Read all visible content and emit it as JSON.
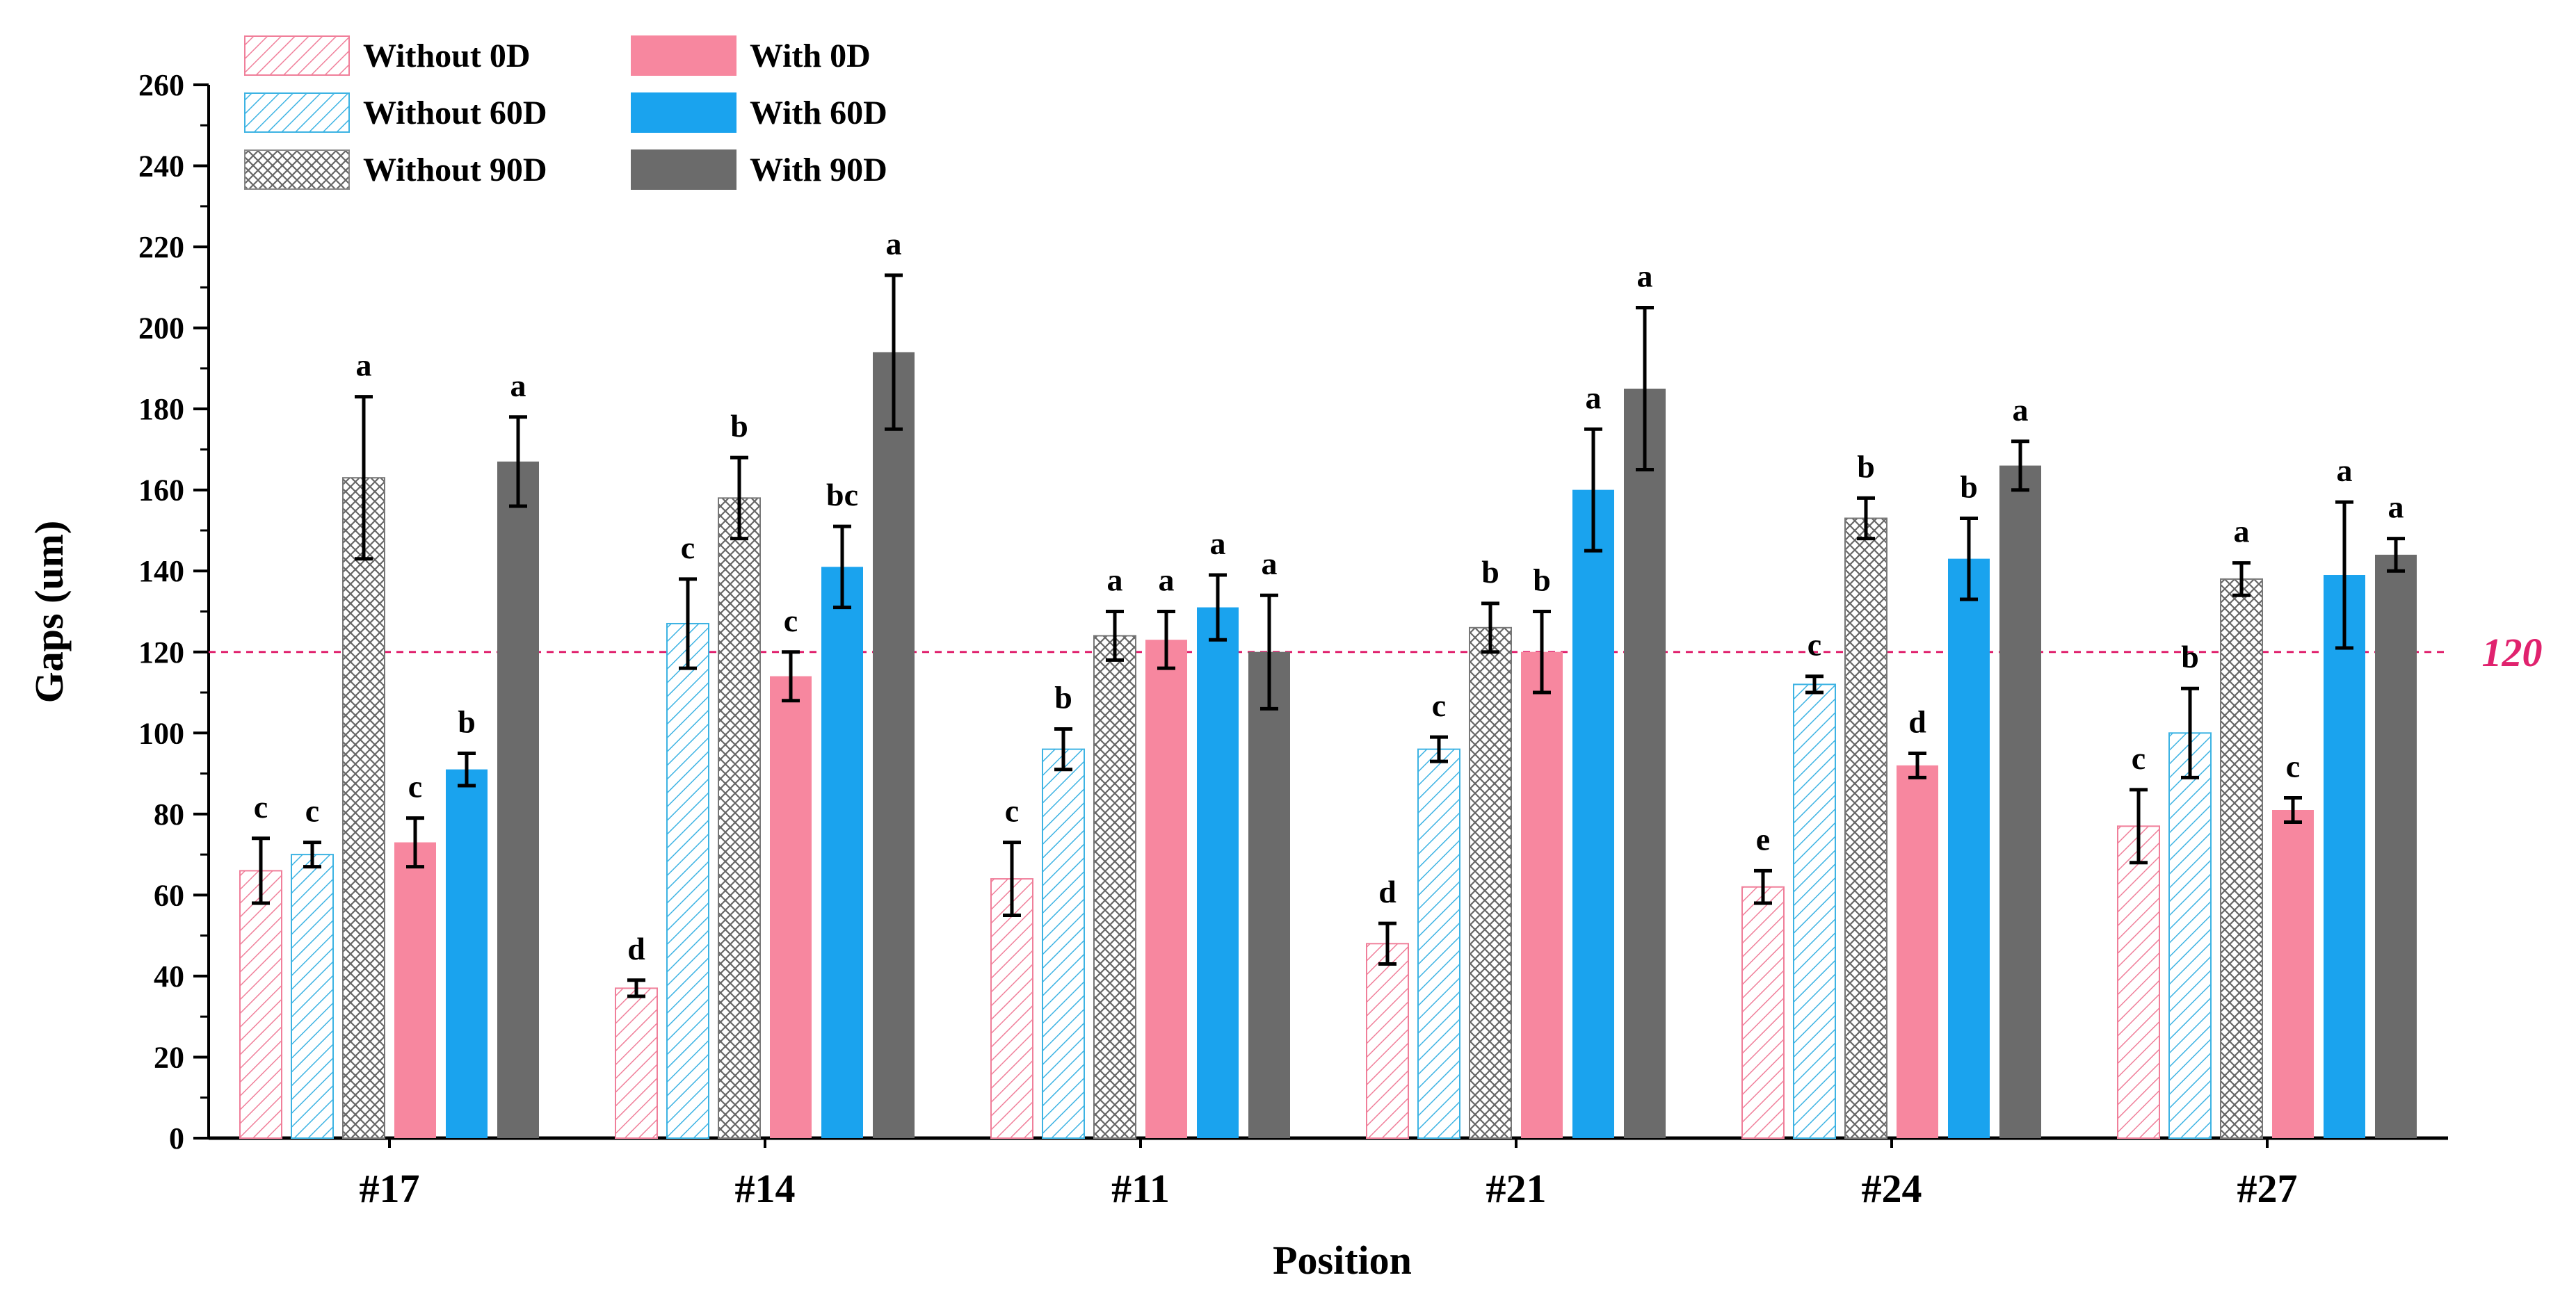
{
  "chart_data": {
    "type": "bar",
    "xlabel": "Position",
    "ylabel": "Gaps (um)",
    "ylim": [
      0,
      260
    ],
    "ytick_step": 20,
    "yticks": [
      "0",
      "20",
      "40",
      "60",
      "80",
      "100",
      "120",
      "140",
      "160",
      "180",
      "200",
      "220",
      "240",
      "260"
    ],
    "categories": [
      "#17",
      "#14",
      "#11",
      "#21",
      "#24",
      "#27"
    ],
    "reference_line": {
      "value": 120,
      "label": "120",
      "color": "#e0226e"
    },
    "legend_position": "top-left",
    "series": [
      {
        "name": "Without 0D",
        "style": "hatch-diagonal",
        "color": "#f07f9a",
        "values": [
          66,
          37,
          64,
          48,
          62,
          77
        ],
        "errors": [
          8,
          2,
          9,
          5,
          4,
          9
        ],
        "labels": [
          "c",
          "d",
          "c",
          "d",
          "e",
          "c"
        ]
      },
      {
        "name": "Without 60D",
        "style": "hatch-diagonal",
        "color": "#3db3e3",
        "values": [
          70,
          127,
          96,
          96,
          112,
          100
        ],
        "errors": [
          3,
          11,
          5,
          3,
          2,
          11
        ],
        "labels": [
          "c",
          "c",
          "b",
          "c",
          "c",
          "b"
        ]
      },
      {
        "name": "Without 90D",
        "style": "hatch-cross",
        "color": "#777777",
        "values": [
          163,
          158,
          124,
          126,
          153,
          138
        ],
        "errors": [
          20,
          10,
          6,
          6,
          5,
          4
        ],
        "labels": [
          "a",
          "b",
          "a",
          "b",
          "b",
          "a"
        ]
      },
      {
        "name": "With 0D",
        "style": "solid",
        "color": "#f7879f",
        "values": [
          73,
          114,
          123,
          120,
          92,
          81
        ],
        "errors": [
          6,
          6,
          7,
          10,
          3,
          3
        ],
        "labels": [
          "c",
          "c",
          "a",
          "b",
          "d",
          "c"
        ]
      },
      {
        "name": "With 60D",
        "style": "solid",
        "color": "#1aa3ee",
        "values": [
          91,
          141,
          131,
          160,
          143,
          139
        ],
        "errors": [
          4,
          10,
          8,
          15,
          10,
          18
        ],
        "labels": [
          "b",
          "bc",
          "a",
          "a",
          "b",
          "a"
        ]
      },
      {
        "name": "With 90D",
        "style": "solid",
        "color": "#6b6b6b",
        "values": [
          167,
          194,
          120,
          185,
          166,
          144
        ],
        "errors": [
          11,
          19,
          14,
          20,
          6,
          4
        ],
        "labels": [
          "a",
          "a",
          "a",
          "a",
          "a",
          "a"
        ]
      }
    ]
  }
}
